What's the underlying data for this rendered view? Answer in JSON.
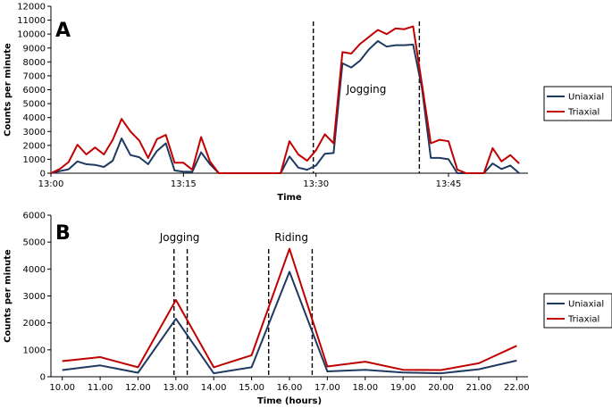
{
  "colors": {
    "uniaxial": "#1f3a60",
    "triaxial": "#c00000"
  },
  "chart_data": [
    {
      "type": "line",
      "panel_label": "A",
      "xlabel": "Time",
      "ylabel": "Counts per minute",
      "x_unit": "minutes after 13:00",
      "xlim": [
        0,
        54
      ],
      "ylim": [
        0,
        12000
      ],
      "y_ticks": [
        0,
        1000,
        2000,
        3000,
        4000,
        5000,
        6000,
        7000,
        8000,
        9000,
        10000,
        11000,
        12000
      ],
      "x_ticks": [
        {
          "x": 0,
          "label": "13:00"
        },
        {
          "x": 15,
          "label": "13:15"
        },
        {
          "x": 30,
          "label": "13:30"
        },
        {
          "x": 45,
          "label": "13:45"
        }
      ],
      "x": [
        0,
        1,
        2,
        3,
        4,
        5,
        6,
        7,
        8,
        9,
        10,
        11,
        12,
        13,
        14,
        15,
        16,
        17,
        18,
        19,
        20,
        21,
        22,
        23,
        24,
        25,
        26,
        27,
        28,
        29,
        30,
        31,
        32,
        33,
        34,
        35,
        36,
        37,
        38,
        39,
        40,
        41,
        42,
        43,
        44,
        45,
        46,
        47,
        48,
        49,
        50,
        51,
        52,
        53
      ],
      "series": [
        {
          "name": "Uniaxial",
          "color_key": "uniaxial",
          "values": [
            0,
            150,
            280,
            850,
            650,
            600,
            450,
            900,
            2500,
            1300,
            1150,
            650,
            1600,
            2150,
            200,
            100,
            100,
            1500,
            650,
            0,
            0,
            0,
            0,
            0,
            0,
            0,
            0,
            1200,
            400,
            250,
            550,
            1400,
            1450,
            7900,
            7600,
            8100,
            8900,
            9500,
            9100,
            9200,
            9200,
            9250,
            6100,
            1100,
            1100,
            1000,
            0,
            0,
            0,
            0,
            700,
            300,
            550,
            0
          ]
        },
        {
          "name": "Triaxial",
          "color_key": "triaxial",
          "values": [
            0,
            300,
            800,
            2050,
            1350,
            1850,
            1350,
            2400,
            3900,
            3000,
            2350,
            1100,
            2450,
            2750,
            750,
            750,
            250,
            2600,
            850,
            0,
            0,
            0,
            0,
            0,
            0,
            0,
            0,
            2300,
            1350,
            900,
            1650,
            2800,
            2150,
            8700,
            8600,
            9300,
            9800,
            10300,
            10000,
            10400,
            10350,
            10550,
            6400,
            2150,
            2400,
            2300,
            250,
            0,
            0,
            0,
            1800,
            850,
            1300,
            700
          ]
        }
      ],
      "vlines": [
        29.7,
        41.7
      ],
      "annotations": [
        {
          "text": "Jogging",
          "x": 35.7,
          "y": 6000
        }
      ],
      "legend": {
        "entries": [
          "Uniaxial",
          "Triaxial"
        ],
        "placement": "right"
      }
    },
    {
      "type": "line",
      "panel_label": "B",
      "xlabel": "Time (hours)",
      "ylabel": "Counts per minute",
      "xlim": [
        9.7,
        22.3
      ],
      "ylim": [
        0,
        6000
      ],
      "y_ticks": [
        0,
        1000,
        2000,
        3000,
        4000,
        5000,
        6000
      ],
      "x_ticks": [
        {
          "x": 10,
          "label": "10.00"
        },
        {
          "x": 11,
          "label": "11.00"
        },
        {
          "x": 12,
          "label": "12.00"
        },
        {
          "x": 13,
          "label": "13.00"
        },
        {
          "x": 14,
          "label": "14.00"
        },
        {
          "x": 15,
          "label": "15.00"
        },
        {
          "x": 16,
          "label": "16.00"
        },
        {
          "x": 17,
          "label": "17.00"
        },
        {
          "x": 18,
          "label": "18.00"
        },
        {
          "x": 19,
          "label": "19.00"
        },
        {
          "x": 20,
          "label": "20.00"
        },
        {
          "x": 21,
          "label": "21.00"
        },
        {
          "x": 22,
          "label": "22.00"
        }
      ],
      "x": [
        10,
        11,
        12,
        13,
        14,
        15,
        16,
        17,
        18,
        19,
        20,
        21,
        22
      ],
      "series": [
        {
          "name": "Uniaxial",
          "color_key": "uniaxial",
          "values": [
            250,
            420,
            150,
            2150,
            130,
            350,
            3900,
            200,
            260,
            160,
            130,
            280,
            600
          ]
        },
        {
          "name": "Triaxial",
          "color_key": "triaxial",
          "values": [
            580,
            730,
            350,
            2850,
            350,
            800,
            4750,
            380,
            560,
            260,
            250,
            500,
            1150
          ]
        }
      ],
      "vlines": [
        12.95,
        13.3,
        15.45,
        16.6
      ],
      "annotations": [
        {
          "text": "Jogging",
          "x": 13.1,
          "y": 5000
        },
        {
          "text": "Riding",
          "x": 16.05,
          "y": 5000
        }
      ],
      "legend": {
        "entries": [
          "Uniaxial",
          "Triaxial"
        ],
        "placement": "right"
      }
    }
  ]
}
